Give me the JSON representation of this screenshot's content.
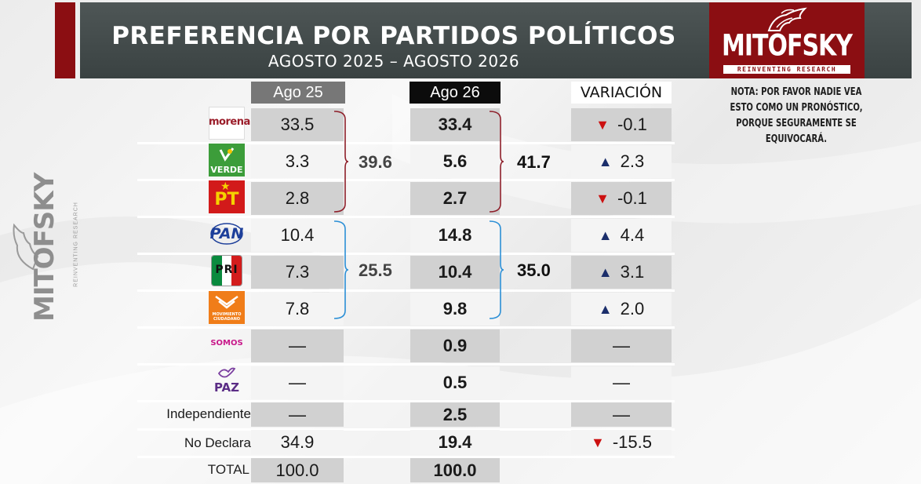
{
  "header": {
    "title": "PREFERENCIA POR PARTIDOS POLÍTICOS",
    "subtitle": "AGOSTO 2025 – AGOSTO 2026"
  },
  "brand": {
    "name": "MITOFSKY",
    "tagline": "REINVENTING RESEARCH",
    "color": "#8b0e12"
  },
  "note": "NOTA: POR FAVOR NADIE VEA ESTO COMO UN PRONÓSTICO, PORQUE SEGURAMENTE SE EQUIVOCARÁ.",
  "columns": {
    "ago25": "Ago 25",
    "ago26": "Ago 26",
    "variacion": "VARIACIÓN"
  },
  "chart_data": {
    "type": "table",
    "title": "PREFERENCIA POR PARTIDOS POLÍTICOS",
    "subtitle": "AGOSTO 2025 – AGOSTO 2026",
    "rows": [
      {
        "party": "morena",
        "logo_text": "morena",
        "ago25": "33.5",
        "ago26": "33.4",
        "var": "-0.1",
        "dir": "down"
      },
      {
        "party": "verde",
        "logo_text": "VERDE",
        "ago25": "3.3",
        "ago26": "5.6",
        "var": "2.3",
        "dir": "up"
      },
      {
        "party": "pt",
        "logo_text": "PT",
        "ago25": "2.8",
        "ago26": "2.7",
        "var": "-0.1",
        "dir": "down"
      },
      {
        "party": "pan",
        "logo_text": "PAN",
        "ago25": "10.4",
        "ago26": "14.8",
        "var": "4.4",
        "dir": "up"
      },
      {
        "party": "pri",
        "logo_text": "PRI",
        "ago25": "7.3",
        "ago26": "10.4",
        "var": "3.1",
        "dir": "up"
      },
      {
        "party": "mc",
        "logo_text": "MOVIMIENTO CIUDADANO",
        "ago25": "7.8",
        "ago26": "9.8",
        "var": "2.0",
        "dir": "up"
      },
      {
        "party": "somos",
        "logo_text": "SOMOS",
        "ago25": "—",
        "ago26": "0.9",
        "var": "—",
        "dir": "none"
      },
      {
        "party": "paz",
        "logo_text": "PAZ",
        "ago25": "—",
        "ago26": "0.5",
        "var": "—",
        "dir": "none"
      },
      {
        "party": "independiente",
        "label": "Independiente",
        "ago25": "—",
        "ago26": "2.5",
        "var": "—",
        "dir": "none"
      },
      {
        "party": "no-declara",
        "label": "No Declara",
        "ago25": "34.9",
        "ago26": "19.4",
        "var": "-15.5",
        "dir": "down"
      },
      {
        "party": "total",
        "label": "TOTAL",
        "ago25": "100.0",
        "ago26": "100.0",
        "var": "",
        "dir": "none"
      }
    ],
    "groups": [
      {
        "name": "morena-verde-pt",
        "ago25": "39.6",
        "ago26": "41.7",
        "color": "#8e1f2a"
      },
      {
        "name": "pan-pri-mc",
        "ago25": "25.5",
        "ago26": "35.0",
        "color": "#2b8fd6"
      }
    ],
    "arrow_colors": {
      "up": "#1b2e6b",
      "down": "#cc1010"
    }
  }
}
